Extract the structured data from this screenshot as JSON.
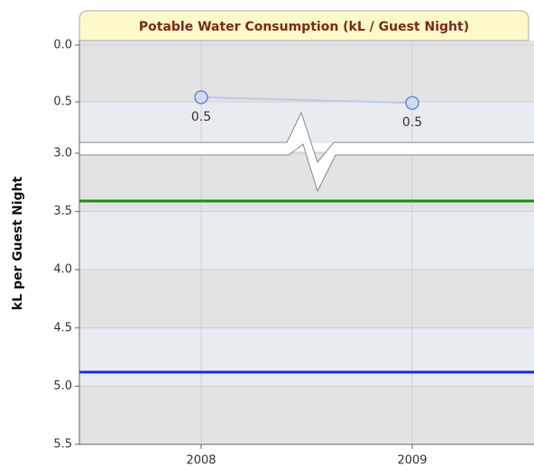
{
  "chart_data": {
    "type": "line",
    "title": "Potable Water Consumption (kL / Guest Night)",
    "y_label": "kL per Guest Night",
    "categories": [
      "2008",
      "2009"
    ],
    "series": [
      {
        "color": "#b8cce8",
        "values": [
          0.46,
          0.51
        ],
        "value_labels": [
          "0.5",
          "0.5"
        ]
      }
    ],
    "reference_lines": [
      {
        "value": 3.41,
        "color": "#1a8a1a"
      },
      {
        "value": 4.88,
        "color": "#1a2ee0"
      }
    ],
    "ylim": [
      0,
      5.5
    ],
    "y_reversed": true,
    "axis_break": [
      0.85,
      3.0
    ],
    "yticks": [
      {
        "value": 0,
        "label": "0.0"
      },
      0.5,
      {
        "value": 3,
        "label": "3.0"
      },
      3.5,
      {
        "value": 4,
        "label": "4.0"
      },
      4.5,
      {
        "value": 5,
        "label": "5.0"
      },
      5.5
    ],
    "grid": true
  }
}
